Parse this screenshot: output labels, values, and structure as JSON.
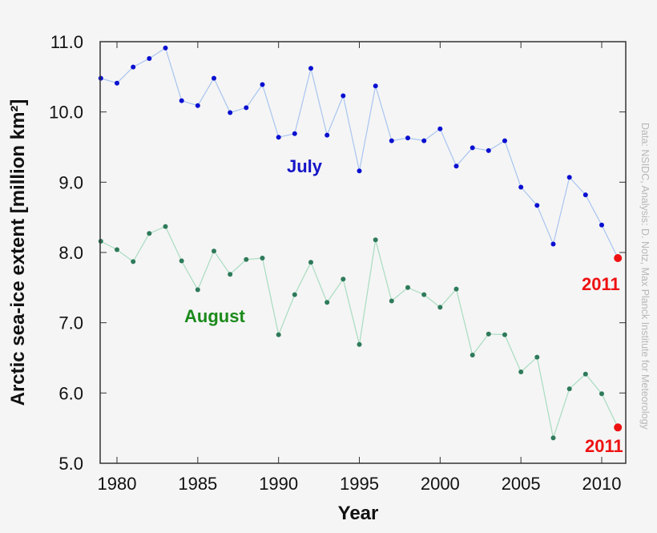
{
  "chart_data": {
    "type": "line",
    "title": "",
    "xlabel": "Year",
    "ylabel": "Arctic sea-ice extent [million km²]",
    "xlim": [
      1979,
      2012.1
    ],
    "ylim": [
      5.0,
      11.0
    ],
    "x_ticks": [
      1980,
      1985,
      1990,
      1995,
      2000,
      2005,
      2010
    ],
    "y_ticks": [
      "5.0",
      "6.0",
      "7.0",
      "8.0",
      "9.0",
      "10.0",
      "11.0"
    ],
    "grid": false,
    "legend": "none (inline series labels)",
    "x": [
      1979,
      1980,
      1981,
      1982,
      1983,
      1984,
      1985,
      1986,
      1987,
      1988,
      1989,
      1990,
      1991,
      1992,
      1993,
      1994,
      1995,
      1996,
      1997,
      1998,
      1999,
      2000,
      2001,
      2002,
      2003,
      2004,
      2005,
      2006,
      2007,
      2008,
      2009,
      2010,
      2011
    ],
    "series": [
      {
        "name": "July",
        "line_color": "#a8c4f0",
        "marker_color": "#0a10d0",
        "label_color": "#1515c8",
        "values": [
          10.48,
          10.41,
          10.64,
          10.76,
          10.91,
          10.16,
          10.09,
          10.48,
          9.99,
          10.06,
          10.39,
          9.64,
          9.69,
          10.62,
          9.67,
          10.23,
          9.16,
          10.37,
          9.59,
          9.63,
          9.59,
          9.76,
          9.23,
          9.49,
          9.45,
          9.59,
          8.93,
          8.67,
          8.12,
          9.07,
          8.82,
          8.39,
          7.92
        ]
      },
      {
        "name": "August",
        "line_color": "#a8dcc0",
        "marker_color": "#2e7a5a",
        "label_color": "#1a8a1a",
        "values": [
          8.16,
          8.04,
          7.87,
          8.27,
          8.37,
          7.88,
          7.47,
          8.02,
          7.69,
          7.9,
          7.92,
          6.83,
          7.4,
          7.86,
          7.29,
          7.62,
          6.69,
          8.18,
          7.31,
          7.5,
          7.4,
          7.22,
          7.48,
          6.54,
          6.84,
          6.83,
          6.3,
          6.51,
          5.36,
          6.06,
          6.27,
          5.99,
          5.51
        ]
      }
    ],
    "highlight": {
      "year": 2011,
      "color": "#ee1111",
      "label": "2011"
    },
    "annotations": [
      {
        "text": "July",
        "series": "July"
      },
      {
        "text": "August",
        "series": "August"
      },
      {
        "text": "2011",
        "series": "July"
      },
      {
        "text": "2011",
        "series": "August"
      }
    ],
    "credit": "Data: NSIDC, Analysis: D. Notz, Max Planck Institute for Meteorology"
  },
  "labels": {
    "xlabel": "Year",
    "ylabel": "Arctic sea-ice extent [million km²]",
    "july": "July",
    "august": "August",
    "highlight_july": "2011",
    "highlight_august": "2011",
    "credit": "Data: NSIDC, Analysis: D. Notz, Max Planck Institute for Meteorology"
  }
}
